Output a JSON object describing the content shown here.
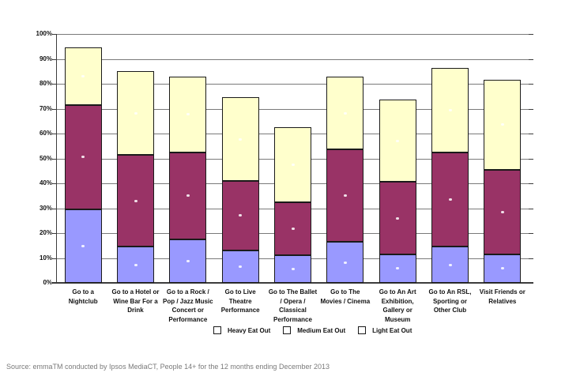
{
  "chart_data": {
    "type": "bar",
    "stacked": true,
    "title": "",
    "xlabel": "",
    "ylabel": "",
    "categories": [
      "Go to a Nightclub",
      "Go to a Hotel or Wine Bar For a Drink",
      "Go to a Rock / Pop / Jazz Music Concert or Performance",
      "Go to Live Theatre Performance",
      "Go to The Ballet / Opera / Classical Performance",
      "Go to The Movies / Cinema",
      "Go to An Art Exhibition, Gallery or Museum",
      "Go to An RSL, Sporting or Other Club",
      "Visit Friends or Relatives"
    ],
    "category_label_lines": [
      [
        "Go to a",
        "Nightclub"
      ],
      [
        "Go to a Hotel or",
        "Wine Bar For a",
        "Drink"
      ],
      [
        "Go to a Rock /",
        "Pop / Jazz Music",
        "Concert or",
        "Performance"
      ],
      [
        "Go to Live",
        "Theatre",
        "Performance"
      ],
      [
        "Go to The Ballet",
        "/ Opera /",
        "Classical",
        "Performance"
      ],
      [
        "Go to The",
        "Movies / Cinema"
      ],
      [
        "Go to An Art",
        "Exhibition,",
        "Gallery or",
        "Museum"
      ],
      [
        "Go to An RSL,",
        "Sporting or",
        "Other Club"
      ],
      [
        "Visit Friends or",
        "Relatives"
      ]
    ],
    "series": [
      {
        "name": "Heavy Eat Out",
        "color": "#9999FF",
        "values": [
          29.5,
          14.5,
          17.5,
          13.0,
          11.0,
          16.5,
          11.5,
          14.5,
          11.5
        ]
      },
      {
        "name": "Medium Eat Out",
        "color": "#993366",
        "values": [
          42.0,
          37.0,
          35.0,
          28.0,
          21.5,
          37.0,
          29.0,
          38.0,
          34.0
        ]
      },
      {
        "name": "Light Eat Out",
        "color": "#FFFFCC",
        "values": [
          23.0,
          33.5,
          30.5,
          33.5,
          30.0,
          29.5,
          33.0,
          34.0,
          36.0
        ]
      }
    ],
    "stack_totals": [
      94.5,
      85.0,
      83.0,
      74.5,
      62.5,
      83.0,
      73.5,
      86.5,
      81.5
    ],
    "ylim": [
      0,
      100
    ],
    "ytick_step": 10,
    "ytick_labels": [
      "0%",
      "10%",
      "20%",
      "30%",
      "40%",
      "50%",
      "60%",
      "70%",
      "80%",
      "90%",
      "100%"
    ],
    "grid": true,
    "legend_position": "bottom",
    "legend_swatch_fill": "#FFFFFF",
    "bar_border_color": "#1a1a1a",
    "gridline_color": "#7a7a7a",
    "axis_color": "#3c3c3c",
    "segment_dot_color": "#FFFFFF"
  },
  "legend": {
    "items": [
      "Heavy Eat Out",
      "Medium Eat Out",
      "Light Eat Out"
    ]
  },
  "footer": {
    "source_note": "Source: emmaTM conducted by Ipsos MediaCT, People 14+ for the 12 months ending December 2013"
  }
}
